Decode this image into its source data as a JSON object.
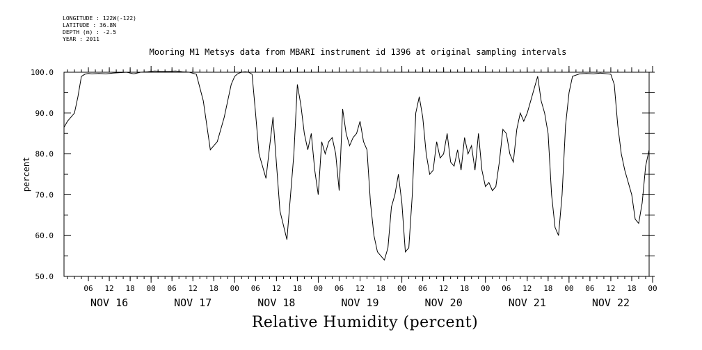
{
  "header": {
    "meta_lines": [
      "LONGITUDE : 122W(-122)",
      "LATITUDE : 36.8N",
      "DEPTH (m) : -2.5",
      "YEAR : 2011"
    ],
    "title": "Mooring M1 Metsys data from MBARI instrument id 1396 at original sampling intervals"
  },
  "chart_data": {
    "type": "line",
    "title": "Mooring M1 Metsys data from MBARI instrument id 1396 at original sampling intervals",
    "xlabel": "Relative Humidity (percent)",
    "ylabel": "percent",
    "ylim": [
      50,
      100
    ],
    "yticks": [
      50,
      60,
      70,
      80,
      90,
      100
    ],
    "ytick_labels": [
      "50.0",
      "60.0",
      "70.0",
      "80.0",
      "90.0",
      "100.0"
    ],
    "xlim_hours": [
      0,
      168
    ],
    "x_start": "2011-11-15T23:00",
    "hour_ticks": [
      "06",
      "12",
      "18",
      "00",
      "06",
      "12",
      "18",
      "00",
      "06",
      "12",
      "18",
      "00",
      "06",
      "12",
      "18",
      "00",
      "06",
      "12",
      "18",
      "00",
      "06",
      "12",
      "18",
      "00",
      "06",
      "12",
      "18",
      "00"
    ],
    "day_labels": [
      "NOV 16",
      "NOV 17",
      "NOV 18",
      "NOV 19",
      "NOV 20",
      "NOV 21",
      "NOV 22"
    ],
    "grid": false,
    "series": [
      {
        "x": [
          0,
          1,
          2,
          3,
          4,
          5,
          6,
          7,
          8,
          10,
          12,
          14,
          16,
          18,
          20,
          22,
          24,
          26,
          28,
          30,
          32,
          34,
          36,
          38,
          40,
          42,
          44,
          46,
          47,
          48,
          49,
          50,
          51,
          52,
          53,
          54,
          55,
          56,
          58,
          60,
          62,
          64,
          66,
          67,
          68,
          69,
          70,
          71,
          72,
          73,
          74,
          75,
          76,
          77,
          78,
          79,
          80,
          81,
          82,
          83,
          84,
          85,
          86,
          87,
          88,
          89,
          90,
          91,
          92,
          93,
          94,
          95,
          96,
          97,
          98,
          99,
          100,
          101,
          102,
          103,
          104,
          105,
          106,
          107,
          108,
          109,
          110,
          111,
          112,
          113,
          114,
          115,
          116,
          117,
          118,
          119,
          120,
          121,
          122,
          123,
          124,
          125,
          126,
          127,
          128,
          129,
          130,
          131,
          132,
          133,
          134,
          135,
          136,
          137,
          138,
          139,
          140,
          141,
          142,
          143,
          144,
          145,
          146,
          148,
          150,
          152,
          154,
          156,
          157,
          158,
          159,
          160,
          161,
          162,
          163,
          164,
          165,
          166,
          167,
          168
        ],
        "y": [
          86.5,
          88,
          89,
          90,
          94,
          99,
          99.5,
          99.7,
          99.6,
          99.7,
          99.6,
          99.8,
          99.9,
          100,
          99.6,
          100,
          100.1,
          100.3,
          100.2,
          100.2,
          100.3,
          100.1,
          100,
          99.5,
          93,
          81,
          83,
          89,
          93,
          97,
          99,
          99.7,
          100,
          100.1,
          100,
          99.5,
          90,
          80,
          74,
          89,
          66,
          59,
          80,
          97,
          92,
          85,
          81,
          85,
          76,
          70,
          83,
          80,
          83,
          84,
          80,
          71,
          91,
          85,
          82,
          84,
          85,
          88,
          83,
          81,
          68,
          60,
          56,
          55,
          54,
          57,
          67,
          70,
          75,
          68,
          56,
          57,
          70,
          90,
          94,
          89,
          80,
          75,
          76,
          83,
          79,
          80,
          85,
          78,
          77,
          81,
          76,
          84,
          80,
          82,
          76,
          85,
          76,
          72,
          73,
          71,
          72,
          78,
          86,
          85,
          80,
          78,
          86,
          90,
          88,
          90,
          93,
          96,
          99,
          93,
          90,
          85,
          70,
          62,
          60,
          70,
          87,
          95,
          99,
          99.6,
          99.7,
          99.6,
          99.8,
          99.6,
          99.5,
          97,
          87,
          80,
          76,
          73,
          70,
          64,
          63,
          68,
          77,
          81
        ]
      }
    ]
  }
}
